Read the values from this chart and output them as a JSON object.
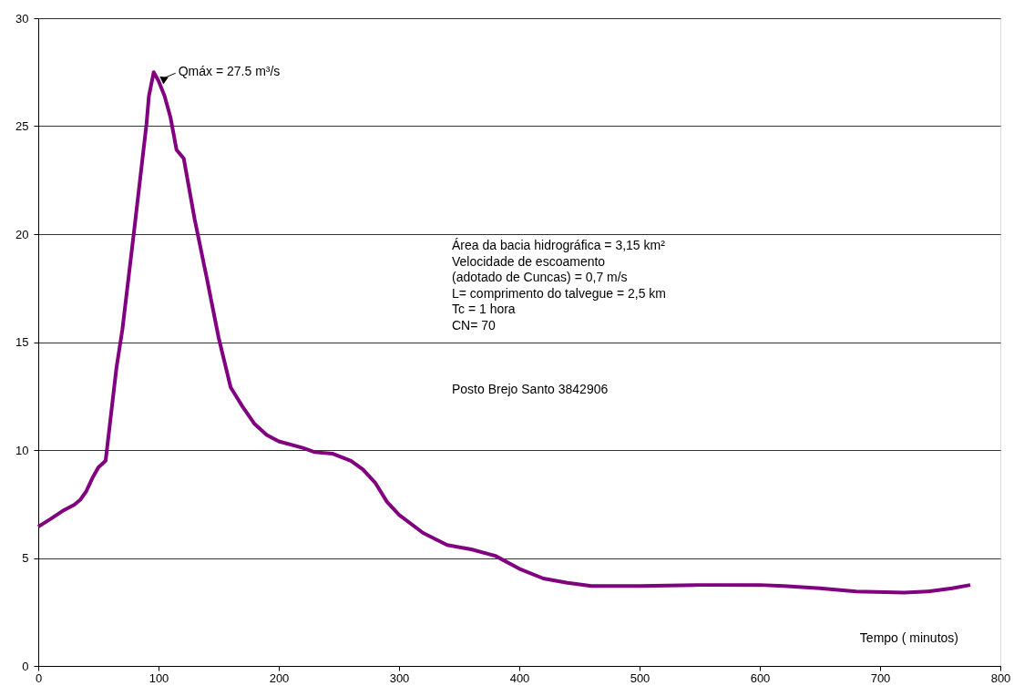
{
  "chart_data": {
    "type": "line",
    "xlabel": "Tempo ( minutos)",
    "x": [
      0,
      10,
      20,
      30,
      35,
      40,
      45,
      50,
      56,
      65,
      70,
      80,
      90,
      92,
      96,
      100,
      105,
      110,
      115,
      121,
      130,
      140,
      150,
      160,
      170,
      180,
      190,
      200,
      220,
      230,
      245,
      260,
      270,
      280,
      290,
      300,
      320,
      340,
      360,
      380,
      400,
      420,
      440,
      460,
      500,
      550,
      600,
      620,
      650,
      680,
      720,
      740,
      760,
      775
    ],
    "series": [
      {
        "color": "#800080",
        "values": [
          6.45,
          6.8,
          7.17,
          7.47,
          7.7,
          8.1,
          8.7,
          9.2,
          9.5,
          13.8,
          15.6,
          20.3,
          25.1,
          26.4,
          27.5,
          27.1,
          26.4,
          25.4,
          23.9,
          23.5,
          20.7,
          18.0,
          15.2,
          12.9,
          12.0,
          11.2,
          10.7,
          10.4,
          10.1,
          9.9,
          9.83,
          9.5,
          9.1,
          8.5,
          7.6,
          7.0,
          6.16,
          5.6,
          5.4,
          5.1,
          4.5,
          4.05,
          3.85,
          3.7,
          3.7,
          3.75,
          3.75,
          3.7,
          3.6,
          3.45,
          3.4,
          3.45,
          3.6,
          3.75
        ]
      }
    ],
    "xlim": [
      0,
      800
    ],
    "xticks": [
      0,
      100,
      200,
      300,
      400,
      500,
      600,
      700,
      800
    ],
    "ylim": [
      0,
      30
    ],
    "yticks": [
      0,
      5,
      10,
      15,
      20,
      25,
      30
    ],
    "grid": "y",
    "marker": "none",
    "line_style": "solid",
    "annotations": [
      {
        "text": "Qmáx = 27.5  m³/s",
        "x": 96,
        "y": 27.5
      },
      "Área da bacia hidrográfica = 3,15 km²",
      "Velocidade de escoamento",
      "(adotado de Cuncas) = 0,7 m/s",
      "L= comprimento do talvegue = 2,5  km",
      "Tc = 1 hora",
      "CN= 70",
      "Posto Brejo Santo 3842906"
    ]
  }
}
